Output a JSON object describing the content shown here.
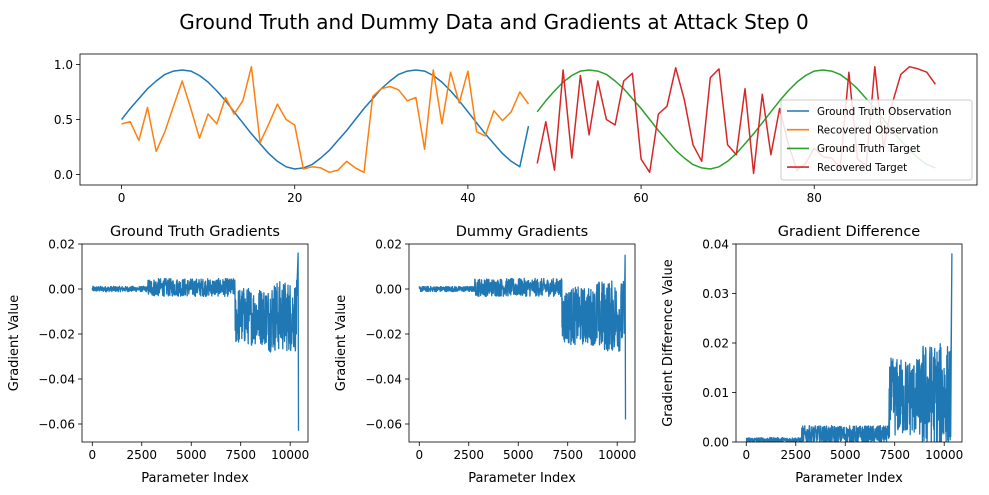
{
  "figure": {
    "title": "Ground Truth and Dummy Data and Gradients at Attack Step 0"
  },
  "chart_data": [
    {
      "type": "line",
      "title": "",
      "xlabel": "",
      "ylabel": "",
      "xlim": [
        -4.8,
        98.8
      ],
      "ylim": [
        -0.095,
        1.095
      ],
      "xticks": [
        0,
        20,
        40,
        60,
        80
      ],
      "yticks": [
        0.0,
        0.5,
        1.0
      ],
      "tick_labels_x": [
        "0",
        "20",
        "40",
        "60",
        "80"
      ],
      "tick_labels_y": [
        "0.0",
        "0.5",
        "1.0"
      ],
      "legend_position": "lower-right",
      "grid": false,
      "series": [
        {
          "name": "Ground Truth Observation",
          "color": "#1f77b4",
          "x": [
            0,
            1,
            2,
            3,
            4,
            5,
            6,
            7,
            8,
            9,
            10,
            11,
            12,
            13,
            14,
            15,
            16,
            17,
            18,
            19,
            20,
            21,
            22,
            23,
            24,
            25,
            26,
            27,
            28,
            29,
            30,
            31,
            32,
            33,
            34,
            35,
            36,
            37,
            38,
            39,
            40,
            41,
            42,
            43,
            44,
            45,
            46,
            47
          ],
          "y": [
            0.5,
            0.6,
            0.69,
            0.78,
            0.85,
            0.91,
            0.94,
            0.95,
            0.94,
            0.9,
            0.84,
            0.76,
            0.67,
            0.57,
            0.47,
            0.37,
            0.28,
            0.19,
            0.12,
            0.07,
            0.05,
            0.06,
            0.09,
            0.15,
            0.22,
            0.31,
            0.4,
            0.5,
            0.6,
            0.69,
            0.78,
            0.85,
            0.91,
            0.94,
            0.95,
            0.94,
            0.9,
            0.84,
            0.76,
            0.67,
            0.57,
            0.47,
            0.37,
            0.28,
            0.19,
            0.12,
            0.07,
            0.44
          ]
        },
        {
          "name": "Recovered Observation",
          "color": "#ff7f0e",
          "x": [
            0,
            1,
            2,
            3,
            4,
            5,
            6,
            7,
            8,
            9,
            10,
            11,
            12,
            13,
            14,
            15,
            16,
            17,
            18,
            19,
            20,
            21,
            22,
            23,
            24,
            25,
            26,
            27,
            28,
            29,
            30,
            31,
            32,
            33,
            34,
            35,
            36,
            37,
            38,
            39,
            40,
            41,
            42,
            43,
            44,
            45,
            46,
            47
          ],
          "y": [
            0.46,
            0.48,
            0.31,
            0.61,
            0.21,
            0.39,
            0.62,
            0.85,
            0.6,
            0.33,
            0.55,
            0.46,
            0.7,
            0.55,
            0.67,
            0.98,
            0.29,
            0.46,
            0.64,
            0.5,
            0.45,
            0.05,
            0.07,
            0.06,
            0.02,
            0.04,
            0.12,
            0.06,
            0.02,
            0.71,
            0.78,
            0.8,
            0.77,
            0.67,
            0.7,
            0.23,
            0.95,
            0.46,
            0.93,
            0.65,
            0.94,
            0.39,
            0.35,
            0.58,
            0.49,
            0.57,
            0.75,
            0.64
          ]
        },
        {
          "name": "Ground Truth Target",
          "color": "#2ca02c",
          "x": [
            48,
            49,
            50,
            51,
            52,
            53,
            54,
            55,
            56,
            57,
            58,
            59,
            60,
            61,
            62,
            63,
            64,
            65,
            66,
            67,
            68,
            69,
            70,
            71,
            72,
            73,
            74,
            75,
            76,
            77,
            78,
            79,
            80,
            81,
            82,
            83,
            84,
            85,
            86,
            87,
            88,
            89,
            90,
            91,
            92,
            93,
            94
          ],
          "y": [
            0.57,
            0.67,
            0.76,
            0.84,
            0.9,
            0.94,
            0.95,
            0.94,
            0.91,
            0.85,
            0.78,
            0.69,
            0.6,
            0.5,
            0.4,
            0.31,
            0.22,
            0.15,
            0.09,
            0.06,
            0.05,
            0.07,
            0.12,
            0.19,
            0.28,
            0.37,
            0.47,
            0.57,
            0.67,
            0.76,
            0.84,
            0.9,
            0.94,
            0.95,
            0.94,
            0.91,
            0.85,
            0.78,
            0.69,
            0.6,
            0.5,
            0.4,
            0.31,
            0.22,
            0.15,
            0.09,
            0.06
          ]
        },
        {
          "name": "Recovered Target",
          "color": "#d62728",
          "x": [
            48,
            49,
            50,
            51,
            52,
            53,
            54,
            55,
            56,
            57,
            58,
            59,
            60,
            61,
            62,
            63,
            64,
            65,
            66,
            67,
            68,
            69,
            70,
            71,
            72,
            73,
            74,
            75,
            76,
            77,
            78,
            79,
            80,
            81,
            82,
            83,
            84,
            85,
            86,
            87,
            88,
            89,
            90,
            91,
            92,
            93,
            94
          ],
          "y": [
            0.1,
            0.48,
            0.04,
            0.95,
            0.15,
            0.9,
            0.36,
            0.85,
            0.5,
            0.45,
            0.85,
            0.92,
            0.14,
            0.02,
            0.55,
            0.62,
            0.97,
            0.68,
            0.27,
            0.12,
            0.88,
            0.96,
            0.27,
            0.18,
            0.78,
            0.01,
            0.73,
            0.18,
            0.6,
            0.28,
            0.04,
            0.1,
            0.24,
            0.16,
            0.15,
            0.06,
            0.93,
            0.14,
            0.08,
            0.98,
            0.24,
            0.64,
            0.91,
            0.98,
            0.96,
            0.93,
            0.82
          ]
        }
      ]
    },
    {
      "type": "line",
      "title": "Ground Truth Gradients",
      "xlabel": "Parameter Index",
      "ylabel": "Gradient Value",
      "xlim": [
        -520,
        10900
      ],
      "ylim": [
        -0.068,
        0.02
      ],
      "xticks": [
        0,
        2500,
        5000,
        7500,
        10000
      ],
      "yticks": [
        -0.06,
        -0.04,
        -0.02,
        0.0,
        0.02
      ],
      "tick_labels_x": [
        "0",
        "2500",
        "5000",
        "7500",
        "10000"
      ],
      "tick_labels_y": [
        "−0.06",
        "−0.04",
        "−0.02",
        "0.00",
        "0.02"
      ],
      "series": [
        {
          "color": "#1f77b4",
          "description": "Approximate amplitude envelope of a densely sampled gradient vector",
          "segments": [
            {
              "x_start": 0,
              "x_end": 2800,
              "center": 0.0,
              "amplitude": 0.0012
            },
            {
              "x_start": 2800,
              "x_end": 7200,
              "center": 0.0007,
              "amplitude": 0.004
            },
            {
              "x_start": 7200,
              "x_end": 8900,
              "center": -0.012,
              "amplitude": 0.013
            },
            {
              "x_start": 8900,
              "x_end": 10350,
              "center": -0.012,
              "amplitude": 0.016
            }
          ],
          "extremes": [
            {
              "x": 10400,
              "y": 0.016
            },
            {
              "x": 10420,
              "y": -0.063
            }
          ]
        }
      ]
    },
    {
      "type": "line",
      "title": "Dummy Gradients",
      "xlabel": "Parameter Index",
      "ylabel": "Gradient Value",
      "xlim": [
        -520,
        10900
      ],
      "ylim": [
        -0.068,
        0.02
      ],
      "xticks": [
        0,
        2500,
        5000,
        7500,
        10000
      ],
      "yticks": [
        -0.06,
        -0.04,
        -0.02,
        0.0,
        0.02
      ],
      "tick_labels_x": [
        "0",
        "2500",
        "5000",
        "7500",
        "10000"
      ],
      "tick_labels_y": [
        "−0.06",
        "−0.04",
        "−0.02",
        "0.00",
        "0.02"
      ],
      "series": [
        {
          "color": "#1f77b4",
          "description": "Approximate amplitude envelope of a densely sampled gradient vector",
          "segments": [
            {
              "x_start": 0,
              "x_end": 2800,
              "center": 0.0,
              "amplitude": 0.0012
            },
            {
              "x_start": 2800,
              "x_end": 7200,
              "center": 0.0007,
              "amplitude": 0.004
            },
            {
              "x_start": 7200,
              "x_end": 8900,
              "center": -0.012,
              "amplitude": 0.013
            },
            {
              "x_start": 8900,
              "x_end": 10350,
              "center": -0.012,
              "amplitude": 0.016
            }
          ],
          "extremes": [
            {
              "x": 10400,
              "y": 0.015
            },
            {
              "x": 10420,
              "y": -0.058
            }
          ]
        }
      ]
    },
    {
      "type": "line",
      "title": "Gradient Difference",
      "xlabel": "Parameter Index",
      "ylabel": "Gradient Difference Value",
      "xlim": [
        -520,
        10900
      ],
      "ylim": [
        0.0,
        0.04
      ],
      "xticks": [
        0,
        2500,
        5000,
        7500,
        10000
      ],
      "yticks": [
        0.0,
        0.01,
        0.02,
        0.03,
        0.04
      ],
      "tick_labels_x": [
        "0",
        "2500",
        "5000",
        "7500",
        "10000"
      ],
      "tick_labels_y": [
        "0.00",
        "0.01",
        "0.02",
        "0.03",
        "0.04"
      ],
      "series": [
        {
          "color": "#1f77b4",
          "description": "Approximate amplitude envelope of a densely sampled non-negative difference",
          "segments": [
            {
              "x_start": 0,
              "x_end": 2800,
              "center": 0.0004,
              "amplitude": 0.0005
            },
            {
              "x_start": 2800,
              "x_end": 7200,
              "center": 0.0015,
              "amplitude": 0.0018
            },
            {
              "x_start": 7200,
              "x_end": 8900,
              "center": 0.009,
              "amplitude": 0.008
            },
            {
              "x_start": 8900,
              "x_end": 10350,
              "center": 0.009,
              "amplitude": 0.011
            }
          ],
          "extremes": [
            {
              "x": 10390,
              "y": 0.038
            },
            {
              "x": 10330,
              "y": 0.001
            }
          ]
        }
      ]
    }
  ]
}
